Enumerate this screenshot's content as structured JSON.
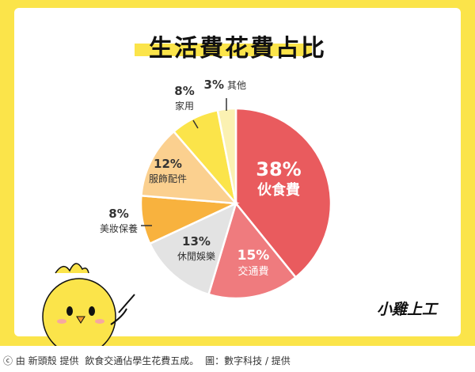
{
  "chart_data": {
    "type": "pie",
    "title": "生活費花費占比",
    "slices": [
      {
        "label": "伙食費",
        "value": 38,
        "pct_text": "38%",
        "color": "#e95b5e"
      },
      {
        "label": "交通費",
        "value": 15,
        "pct_text": "15%",
        "color": "#ef7b7e"
      },
      {
        "label": "休閒娛樂",
        "value": 13,
        "pct_text": "13%",
        "color": "#e3e3e3"
      },
      {
        "label": "美妝保養",
        "value": 8,
        "pct_text": "8%",
        "color": "#f8b23e"
      },
      {
        "label": "服飾配件",
        "value": 12,
        "pct_text": "12%",
        "color": "#fbd08f"
      },
      {
        "label": "家用",
        "value": 8,
        "pct_text": "8%",
        "color": "#fbe44a"
      },
      {
        "label": "其他",
        "value": 3,
        "pct_text": "3%",
        "color": "#fbf1b2"
      }
    ]
  },
  "brand": "小雞上工",
  "caption": {
    "source": "ⓒ 由 新頭殼 提供",
    "text": "飲食交通佔學生花費五成。",
    "credit": "圖：數字科技 / 提供"
  },
  "colors": {
    "frame": "#fbe44a",
    "chick": "#fbe44a"
  }
}
